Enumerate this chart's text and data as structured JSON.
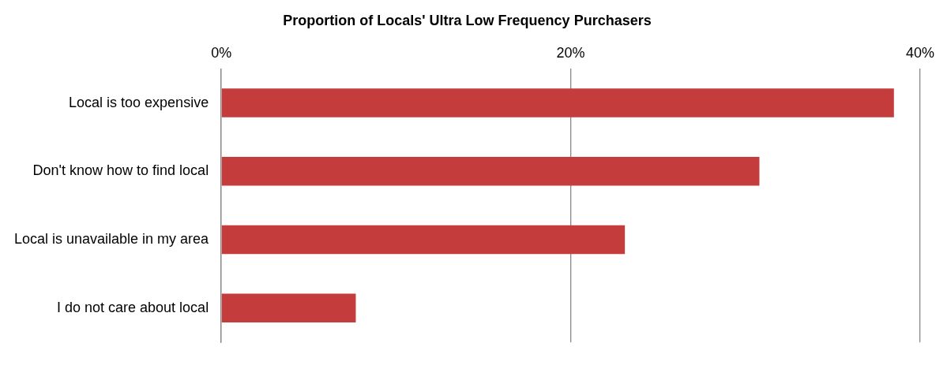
{
  "chart_data": {
    "type": "bar",
    "orientation": "horizontal",
    "title": "Proportion of Locals' Ultra Low Frequency Purchasers",
    "categories": [
      "Local is too expensive",
      "Don't know how to find local",
      "Local is unavailable in my area",
      "I do not care about local"
    ],
    "values": [
      38.5,
      30.8,
      23.1,
      7.7
    ],
    "color": "#c43c3c",
    "xlim": [
      0,
      40
    ],
    "xticks": [
      {
        "value": 0,
        "label": "0%"
      },
      {
        "value": 20,
        "label": "20%"
      },
      {
        "value": 40,
        "label": "40%"
      }
    ],
    "grid": "x",
    "legend": false
  }
}
